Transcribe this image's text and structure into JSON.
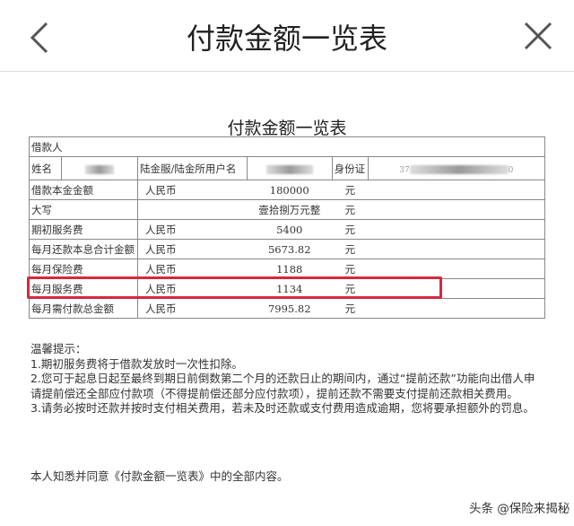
{
  "header": {
    "title": "付款金额一览表",
    "back_icon": "chevron-left-icon",
    "close_icon": "close-icon"
  },
  "document": {
    "title": "付款金额一览表",
    "borrower_label": "借款人",
    "name_label": "姓名",
    "username_label": "陆金服/陆金所用户名",
    "id_label": "身份证",
    "id_prefix": "37",
    "id_suffix": "0",
    "rows": [
      {
        "label": "借款本金金额",
        "currency": "人民币",
        "value": "180000",
        "unit": "元"
      },
      {
        "label": "大写",
        "currency": "",
        "value": "壹拾捌万元整",
        "unit": "元"
      },
      {
        "label": "期初服务费",
        "currency": "人民币",
        "value": "5400",
        "unit": "元"
      },
      {
        "label": "每月还款本息合计金额",
        "currency": "人民币",
        "value": "5673.82",
        "unit": "元"
      },
      {
        "label": "每月保险费",
        "currency": "人民币",
        "value": "1188",
        "unit": "元"
      },
      {
        "label": "每月服务费",
        "currency": "人民币",
        "value": "1134",
        "unit": "元",
        "highlighted": true
      },
      {
        "label": "每月需付款总金额",
        "currency": "人民币",
        "value": "7995.82",
        "unit": "元"
      }
    ],
    "highlight_color": "#d42a3c",
    "notes_title": "温馨提示：",
    "notes": [
      "1.期初服务费将于借款发放时一次性扣除。",
      "2.您可于起息日起至最终到期日前倒数第二个月的还款日止的期间内，通过“提前还款”功能向出借人申请提前偿还全部应付款项（不得提前偿还部分应付款项），提前还款不需要支付提前还款相关费用。",
      "3.请务必按时还款并按时支付相关费用，若未及时还款或支付费用造成逾期，您将要承担额外的罚息。"
    ],
    "agreement": "本人知悉并同意《付款金额一览表》中的全部内容。"
  },
  "watermark": "头条 @保险来揭秘"
}
